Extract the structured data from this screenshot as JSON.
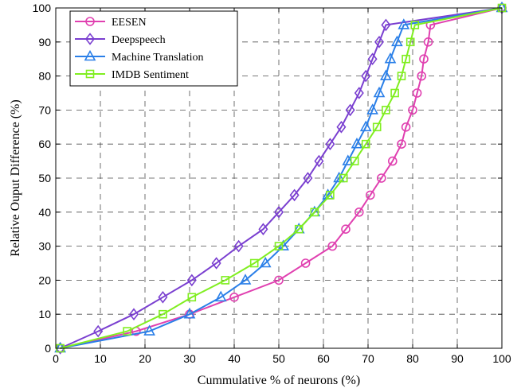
{
  "chart_data": {
    "type": "line",
    "title": "",
    "xlabel": "Cummulative % of neurons (%)",
    "ylabel": "Relative Ouput Difference (%)",
    "xlim": [
      0,
      100
    ],
    "ylim": [
      0,
      100
    ],
    "xticks": [
      "0",
      "10",
      "20",
      "30",
      "40",
      "50",
      "60",
      "70",
      "80",
      "90",
      "100"
    ],
    "yticks": [
      "0",
      "10",
      "20",
      "30",
      "40",
      "50",
      "60",
      "70",
      "80",
      "90",
      "100"
    ],
    "grid": true,
    "legend_position": "top-left",
    "series": [
      {
        "name": "EESEN",
        "color": "#e040b0",
        "marker": "circle",
        "points": [
          [
            1,
            0
          ],
          [
            18,
            5
          ],
          [
            30,
            10
          ],
          [
            40,
            15
          ],
          [
            50,
            20
          ],
          [
            56,
            25
          ],
          [
            62,
            30
          ],
          [
            65,
            35
          ],
          [
            68,
            40
          ],
          [
            70.5,
            45
          ],
          [
            73,
            50
          ],
          [
            75.5,
            55
          ],
          [
            77.5,
            60
          ],
          [
            78.5,
            65
          ],
          [
            80,
            70
          ],
          [
            81,
            75
          ],
          [
            82,
            80
          ],
          [
            82.5,
            85
          ],
          [
            83.5,
            90
          ],
          [
            84,
            95
          ],
          [
            100,
            100
          ]
        ]
      },
      {
        "name": "Deepspeech",
        "color": "#7a3fd0",
        "marker": "diamond",
        "points": [
          [
            1,
            0
          ],
          [
            9.5,
            5
          ],
          [
            17.5,
            10
          ],
          [
            24,
            15
          ],
          [
            30.5,
            20
          ],
          [
            36,
            25
          ],
          [
            41,
            30
          ],
          [
            46.5,
            35
          ],
          [
            50,
            40
          ],
          [
            53.5,
            45
          ],
          [
            56.5,
            50
          ],
          [
            59,
            55
          ],
          [
            61.5,
            60
          ],
          [
            64,
            65
          ],
          [
            66,
            70
          ],
          [
            68,
            75
          ],
          [
            69.5,
            80
          ],
          [
            71,
            85
          ],
          [
            72.5,
            90
          ],
          [
            74,
            95
          ],
          [
            100,
            100
          ]
        ]
      },
      {
        "name": "Machine Translation",
        "color": "#2a7fe8",
        "marker": "triangle",
        "points": [
          [
            1,
            0
          ],
          [
            21,
            5
          ],
          [
            30,
            10
          ],
          [
            37,
            15
          ],
          [
            42.5,
            20
          ],
          [
            47,
            25
          ],
          [
            51,
            30
          ],
          [
            54.5,
            35
          ],
          [
            58,
            40
          ],
          [
            61,
            45
          ],
          [
            63.5,
            50
          ],
          [
            65.5,
            55
          ],
          [
            67.5,
            60
          ],
          [
            69.5,
            65
          ],
          [
            71,
            70
          ],
          [
            72.5,
            75
          ],
          [
            74,
            80
          ],
          [
            75,
            85
          ],
          [
            76.5,
            90
          ],
          [
            78,
            95
          ],
          [
            100,
            100
          ]
        ]
      },
      {
        "name": "IMDB Sentiment",
        "color": "#80ee20",
        "marker": "square",
        "points": [
          [
            1,
            0
          ],
          [
            16,
            5
          ],
          [
            24,
            10
          ],
          [
            30.5,
            15
          ],
          [
            38,
            20
          ],
          [
            44.5,
            25
          ],
          [
            50,
            30
          ],
          [
            54.5,
            35
          ],
          [
            58,
            40
          ],
          [
            61.5,
            45
          ],
          [
            64.5,
            50
          ],
          [
            67,
            55
          ],
          [
            69.5,
            60
          ],
          [
            72,
            65
          ],
          [
            74,
            70
          ],
          [
            76,
            75
          ],
          [
            77.5,
            80
          ],
          [
            78.5,
            85
          ],
          [
            79.5,
            90
          ],
          [
            80.5,
            95
          ],
          [
            100,
            100
          ]
        ]
      }
    ]
  }
}
